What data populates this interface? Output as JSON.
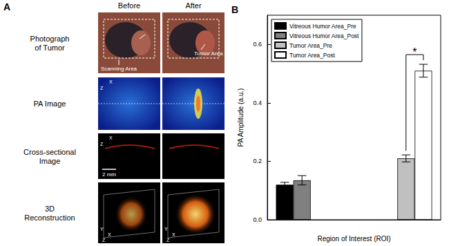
{
  "panel_a": {
    "label": "A",
    "columns": [
      "Before",
      "After"
    ],
    "rows": [
      [
        "Photograph",
        "of Tumor"
      ],
      [
        "PA Image"
      ],
      [
        "Cross-sectional",
        "Image"
      ],
      [
        "3D",
        "Reconstruction"
      ]
    ],
    "annotations": {
      "scanning_area": "Scanning Area",
      "tumor_area": "Tumor Area"
    },
    "scale_bar": "2 mm",
    "axis_letters": {
      "pa": [
        "X",
        "Z"
      ],
      "cross": [
        "X",
        "Z"
      ],
      "reconstruction": [
        "Y",
        "X",
        "Z"
      ]
    }
  },
  "chart_data": {
    "type": "bar",
    "title": "B",
    "categories": [
      null,
      null
    ],
    "series": [
      {
        "name": "Vitreous Humor Area_Pre",
        "color": "#000000",
        "values": [
          0.12,
          null
        ],
        "errors": [
          0.008,
          null
        ]
      },
      {
        "name": "Vitreous Humor Area_Post",
        "color": "#808080",
        "values": [
          0.135,
          null
        ],
        "errors": [
          0.016,
          null
        ]
      },
      {
        "name": "Tumor Area_Pre",
        "color": "#c0c0c0",
        "values": [
          null,
          0.21
        ],
        "errors": [
          null,
          0.012
        ]
      },
      {
        "name": "Tumor Area_Post",
        "color": "#ffffff",
        "values": [
          null,
          0.51
        ],
        "errors": [
          null,
          0.022
        ]
      }
    ],
    "ylim": [
      0,
      0.7
    ],
    "yticks": [
      {
        "value": 0,
        "label": "0.0"
      },
      0.2,
      0.4,
      0.6
    ],
    "ylabel": "PA Amplitude (a.u.)",
    "xlabel": "Region of Interest (ROI)",
    "legend": "upper left",
    "grid": false,
    "significance": [
      {
        "text": "*",
        "between": [
          "Tumor Area_Pre",
          "Tumor Area_Post"
        ]
      }
    ]
  }
}
